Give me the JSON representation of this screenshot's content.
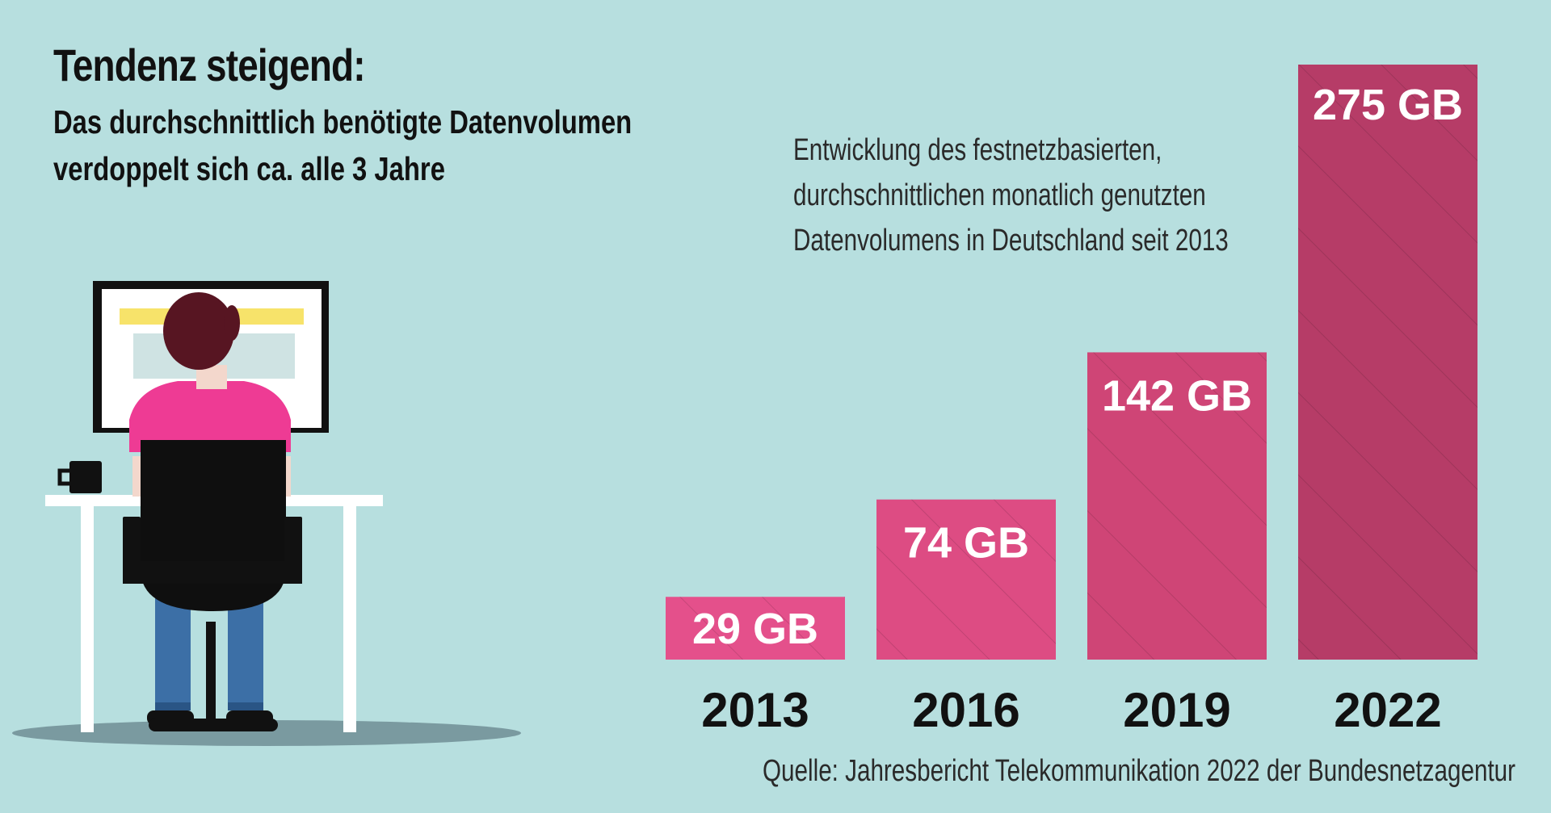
{
  "title": "Tendenz steigend:",
  "subtitle": {
    "line1": "Das durchschnittlich benötigte Datenvolumen",
    "line2": "verdoppelt sich ca. alle 3 Jahre"
  },
  "description": {
    "line1": "Entwicklung des festnetzbasierten,",
    "line2": "durchschnittlichen monatlich genutzten",
    "line3": "Datenvolumens in Deutschland seit 2013"
  },
  "source": "Quelle: Jahresbericht Telekommunikation 2022 der Bundesnetzagentur",
  "chart_data": {
    "type": "bar",
    "categories": [
      "2013",
      "2016",
      "2019",
      "2022"
    ],
    "values": [
      29,
      74,
      142,
      275
    ],
    "data_labels": [
      "29 GB",
      "74 GB",
      "142 GB",
      "275 GB"
    ],
    "unit": "GB",
    "colors": [
      "#e4508b",
      "#dd4c83",
      "#cf4576",
      "#b63c67"
    ],
    "grid": false
  },
  "colors": {
    "background": "#b7dfdf",
    "label_text": "#ffffff",
    "axis_text": "#111111"
  }
}
